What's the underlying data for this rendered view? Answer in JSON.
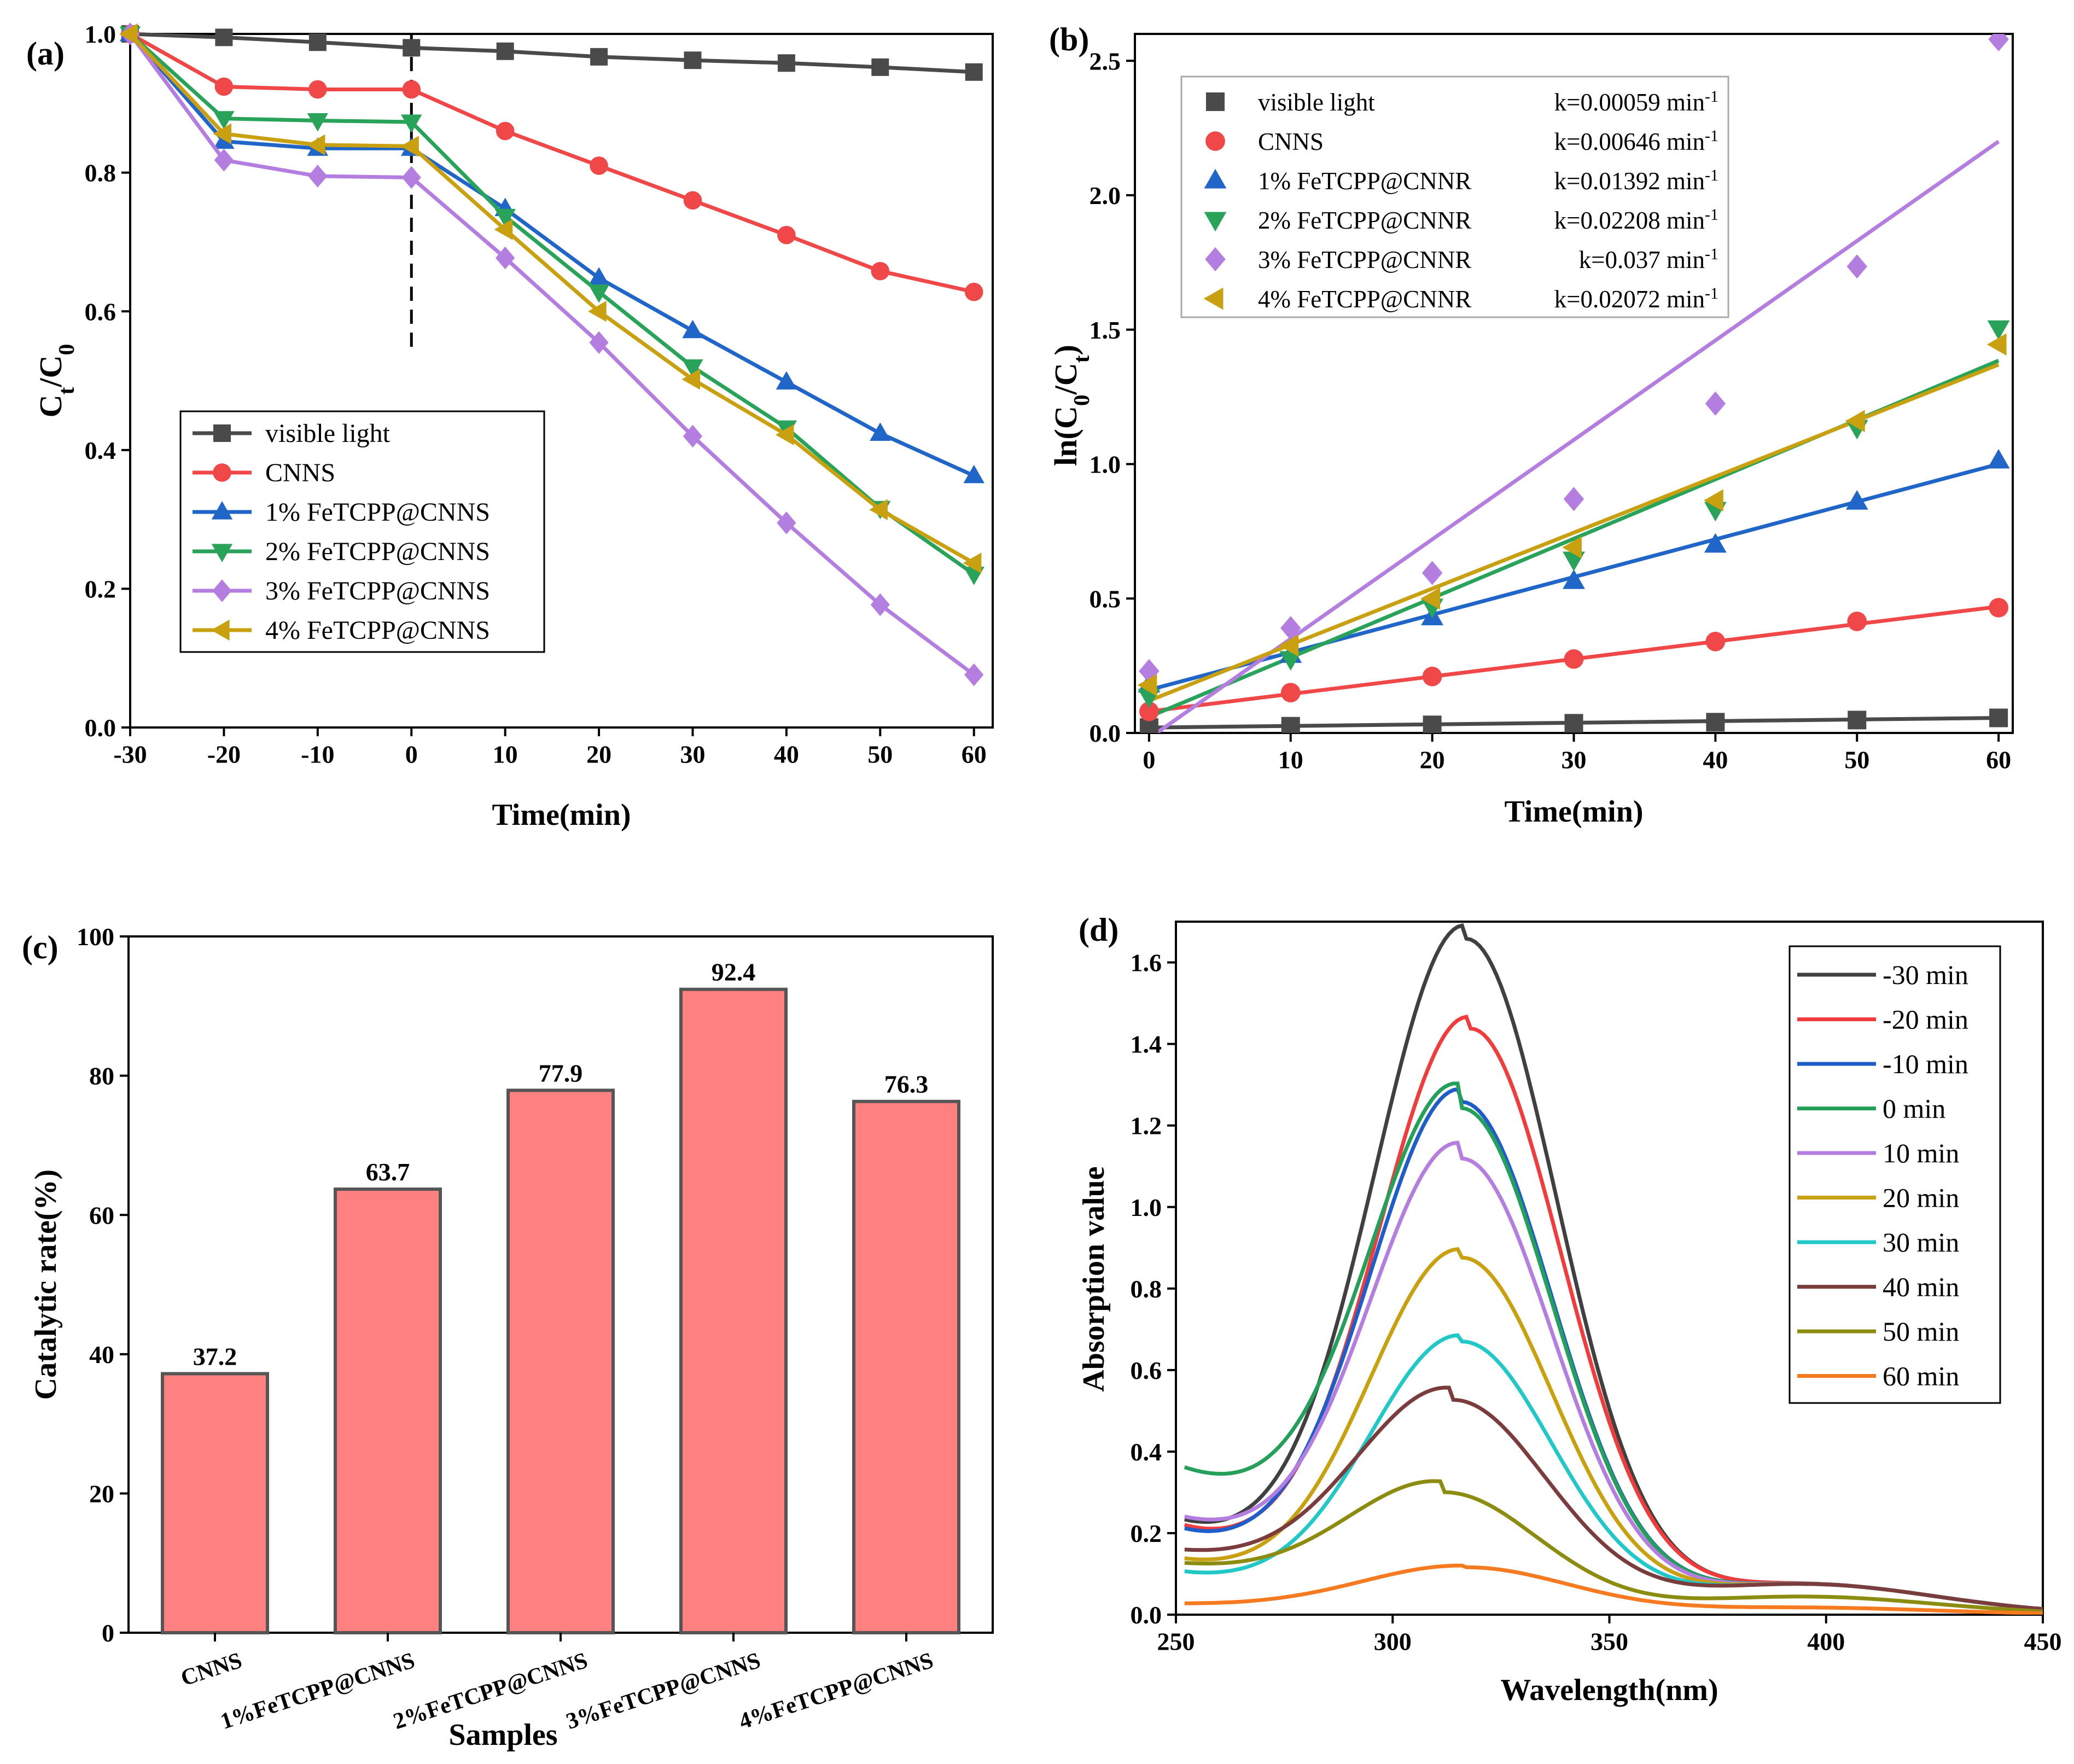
{
  "chart_data": [
    {
      "panel": "(a)",
      "type": "line",
      "xlabel": "Time(min)",
      "ylabel_main": "C",
      "ylabel_sub1": "t",
      "ylabel_mid": "/C",
      "ylabel_sub2": "0",
      "xlim": [
        -30,
        62
      ],
      "ylim": [
        0,
        1.0
      ],
      "xticks": [
        -30,
        -20,
        -10,
        0,
        10,
        20,
        30,
        40,
        50,
        60
      ],
      "xtick_labels": [
        "-30",
        "-20",
        "-10",
        "0",
        "10",
        "20",
        "30",
        "40",
        "50",
        "60"
      ],
      "yticks": [
        0,
        0.2,
        0.4,
        0.6,
        0.8,
        1.0
      ],
      "ytick_labels": [
        "0.0",
        "0.2",
        "0.4",
        "0.6",
        "0.8",
        "1.0"
      ],
      "dashed_line_x": 0,
      "dashed_line_y_range": [
        0.54,
        1.0
      ],
      "legend_position": "lower-left",
      "x": [
        -30,
        -20,
        -10,
        0,
        10,
        20,
        30,
        40,
        50,
        60
      ],
      "series": [
        {
          "name": "visible light",
          "color": "#4a4a4a",
          "marker": "square",
          "values": [
            1.0,
            0.995,
            0.988,
            0.98,
            0.975,
            0.967,
            0.962,
            0.958,
            0.952,
            0.945
          ]
        },
        {
          "name": "CNNS",
          "color": "#f04848",
          "marker": "circle",
          "values": [
            1.0,
            0.924,
            0.92,
            0.92,
            0.86,
            0.81,
            0.76,
            0.71,
            0.658,
            0.628
          ]
        },
        {
          "name": "1% FeTCPP@CNNS",
          "color": "#1f66c8",
          "marker": "triangle-up",
          "values": [
            1.0,
            0.845,
            0.835,
            0.835,
            0.748,
            0.648,
            0.572,
            0.498,
            0.424,
            0.363
          ]
        },
        {
          "name": "2% FeTCPP@CNNS",
          "color": "#2aa35a",
          "marker": "triangle-down",
          "values": [
            1.0,
            0.878,
            0.875,
            0.873,
            0.737,
            0.628,
            0.52,
            0.432,
            0.316,
            0.221
          ]
        },
        {
          "name": "3% FeTCPP@CNNS",
          "color": "#b47ee0",
          "marker": "diamond",
          "values": [
            1.0,
            0.818,
            0.795,
            0.793,
            0.677,
            0.555,
            0.42,
            0.295,
            0.177,
            0.076
          ]
        },
        {
          "name": "4% FeTCPP@CNNS",
          "color": "#c8a010",
          "marker": "triangle-left",
          "values": [
            1.0,
            0.856,
            0.84,
            0.838,
            0.718,
            0.6,
            0.502,
            0.422,
            0.314,
            0.237
          ]
        }
      ]
    },
    {
      "panel": "(b)",
      "type": "scatter",
      "xlabel": "Time(min)",
      "ylabel_main": "ln(C",
      "ylabel_sub1": "0",
      "ylabel_mid": "/C",
      "ylabel_sub2": "t",
      "ylabel_end": ")",
      "xlim": [
        -1,
        61
      ],
      "ylim": [
        0,
        2.6
      ],
      "xticks": [
        0,
        10,
        20,
        30,
        40,
        50,
        60
      ],
      "xtick_labels": [
        "0",
        "10",
        "20",
        "30",
        "40",
        "50",
        "60"
      ],
      "yticks": [
        0,
        0.5,
        1.0,
        1.5,
        2.0,
        2.5
      ],
      "ytick_labels": [
        "0.0",
        "0.5",
        "1.0",
        "1.5",
        "2.0",
        "2.5"
      ],
      "legend_position": "top-left",
      "k_unit": "min",
      "k_unit_exp": "-1",
      "x": [
        0,
        10,
        20,
        30,
        40,
        50,
        60
      ],
      "series": [
        {
          "name": "visible light",
          "color": "#4a4a4a",
          "marker": "square",
          "k_text": "k=0.00059",
          "values": [
            0.02,
            0.025,
            0.03,
            0.036,
            0.04,
            0.048,
            0.056
          ],
          "fit": [
            0.02,
            0.056
          ]
        },
        {
          "name": "CNNS",
          "color": "#f04848",
          "marker": "circle",
          "k_text": "k=0.00646",
          "values": [
            0.08,
            0.15,
            0.21,
            0.275,
            0.34,
            0.415,
            0.466
          ],
          "fit": [
            0.08,
            0.47
          ]
        },
        {
          "name": "1% FeTCPP@CNNR",
          "color": "#1f66c8",
          "marker": "triangle-up",
          "k_text": "k=0.01392",
          "values": [
            0.18,
            0.29,
            0.43,
            0.565,
            0.7,
            0.86,
            1.013
          ],
          "fit": [
            0.16,
            1.0
          ]
        },
        {
          "name": "2% FeTCPP@CNNR",
          "color": "#2aa35a",
          "marker": "triangle-down",
          "k_text": "k=0.02208",
          "values": [
            0.135,
            0.275,
            0.47,
            0.645,
            0.83,
            1.135,
            1.505
          ],
          "fit": [
            0.06,
            1.385
          ]
        },
        {
          "name": "3% FeTCPP@CNNR",
          "color": "#b47ee0",
          "marker": "diamond",
          "k_text": "k=0.037",
          "values": [
            0.23,
            0.39,
            0.595,
            0.87,
            1.225,
            1.735,
            2.58
          ],
          "fit": [
            -0.02,
            2.2
          ]
        },
        {
          "name": "4% FeTCPP@CNNR",
          "color": "#c8a010",
          "marker": "triangle-left",
          "k_text": "k=0.02072",
          "values": [
            0.178,
            0.325,
            0.5,
            0.69,
            0.865,
            1.16,
            1.445
          ],
          "fit": [
            0.12,
            1.37
          ]
        }
      ]
    },
    {
      "panel": "(c)",
      "type": "bar",
      "xlabel": "Samples",
      "ylabel": "Catalytic rate(%)",
      "ylim": [
        0,
        100
      ],
      "yticks": [
        0,
        20,
        40,
        60,
        80,
        100
      ],
      "ytick_labels": [
        "0",
        "20",
        "40",
        "60",
        "80",
        "100"
      ],
      "bar_color": "#ff8080",
      "categories": [
        "CNNS",
        "1%FeTCPP@CNNS",
        "2%FeTCPP@CNNS",
        "3%FeTCPP@CNNS",
        "4%FeTCPP@CNNS"
      ],
      "values": [
        37.2,
        63.7,
        77.9,
        92.4,
        76.3
      ],
      "value_labels": [
        "37.2",
        "63.7",
        "77.9",
        "92.4",
        "76.3"
      ]
    },
    {
      "panel": "(d)",
      "type": "line",
      "xlabel": "Wavelength(nm)",
      "ylabel": "Absorption value",
      "xlim": [
        250,
        450
      ],
      "ylim": [
        0,
        1.7
      ],
      "xticks": [
        250,
        300,
        350,
        400,
        450
      ],
      "xtick_labels": [
        "250",
        "300",
        "350",
        "400",
        "450"
      ],
      "yticks": [
        0,
        0.2,
        0.4,
        0.6,
        0.8,
        1.0,
        1.2,
        1.4,
        1.6
      ],
      "ytick_labels": [
        "0.0",
        "0.2",
        "0.4",
        "0.6",
        "0.8",
        "1.0",
        "1.2",
        "1.4",
        "1.6"
      ],
      "legend_position": "top-right",
      "series": [
        {
          "name": "-30 min",
          "color": "#404040",
          "peak": 1.65,
          "center": 317,
          "sigma": 21,
          "base_start": 0.22,
          "dip": 0.2
        },
        {
          "name": "-20 min",
          "color": "#f03c3c",
          "peak": 1.43,
          "center": 318,
          "sigma": 21,
          "base_start": 0.21,
          "dip": 0.19
        },
        {
          "name": "-10 min",
          "color": "#1f5ec8",
          "peak": 1.25,
          "center": 316,
          "sigma": 21,
          "base_start": 0.2,
          "dip": 0.18
        },
        {
          "name": "0 min",
          "color": "#24a05a",
          "peak": 1.23,
          "center": 316,
          "sigma": 21,
          "base_start": 0.35,
          "dip": 0.34
        },
        {
          "name": "10 min",
          "color": "#b47ee0",
          "peak": 1.11,
          "center": 316,
          "sigma": 21,
          "base_start": 0.23,
          "dip": 0.22
        },
        {
          "name": "20 min",
          "color": "#c8a010",
          "peak": 0.87,
          "center": 316,
          "sigma": 21,
          "base_start": 0.13,
          "dip": 0.12
        },
        {
          "name": "30 min",
          "color": "#22c8c8",
          "peak": 0.665,
          "center": 316,
          "sigma": 21,
          "base_start": 0.1,
          "dip": 0.09
        },
        {
          "name": "40 min",
          "color": "#7a3c3c",
          "peak": 0.52,
          "center": 314,
          "sigma": 22,
          "base_start": 0.15,
          "dip": 0.15
        },
        {
          "name": "50 min",
          "color": "#8c8c10",
          "peak": 0.295,
          "center": 312,
          "sigma": 22,
          "base_start": 0.12,
          "dip": 0.12
        },
        {
          "name": "60 min",
          "color": "#f57a20",
          "peak": 0.115,
          "center": 317,
          "sigma": 24,
          "base_start": 0.025,
          "dip": 0.025
        }
      ]
    }
  ]
}
